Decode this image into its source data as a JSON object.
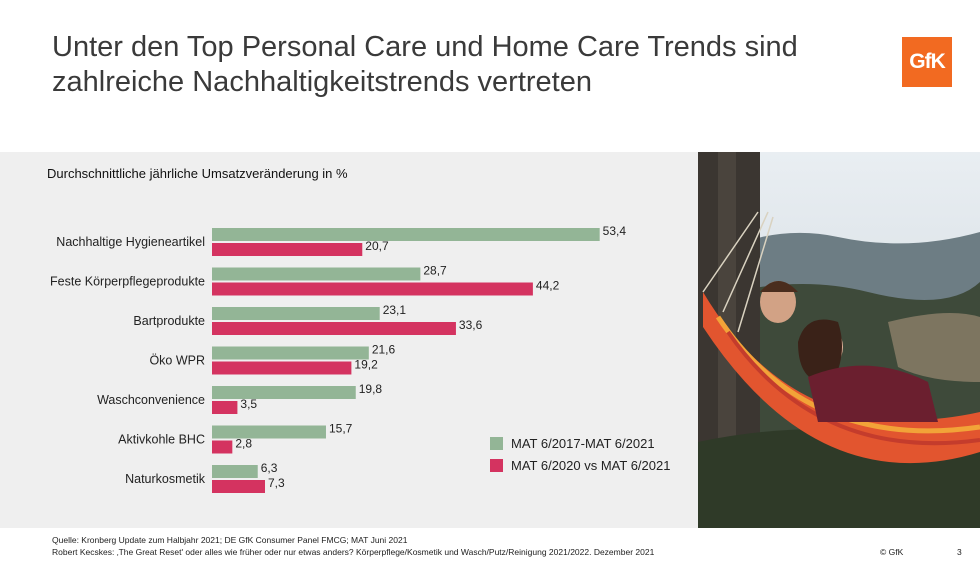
{
  "title": "Unter den Top Personal Care und Home Care Trends sind zahlreiche Nachhaltigkeitstrends vertreten",
  "logo_text": "GfK",
  "colors": {
    "series1": "#93b596",
    "series2": "#d43360",
    "logo": "#f26a21"
  },
  "chart_data": {
    "type": "bar",
    "orientation": "horizontal",
    "title": "Durchschnittliche jährliche Umsatzveränderung in %",
    "categories": [
      "Nachhaltige Hygieneartikel",
      "Feste Körperpflegeprodukte",
      "Bartprodukte",
      "Öko WPR",
      "Waschconvenience",
      "Aktivkohle BHC",
      "Naturkosmetik"
    ],
    "series": [
      {
        "name": "MAT 6/2017-MAT 6/2021",
        "values": [
          53.4,
          28.7,
          23.1,
          21.6,
          19.8,
          15.7,
          6.3
        ],
        "labels": [
          "53,4",
          "28,7",
          "23,1",
          "21,6",
          "19,8",
          "15,7",
          "6,3"
        ]
      },
      {
        "name": "MAT 6/2020 vs MAT 6/2021",
        "values": [
          20.7,
          44.2,
          33.6,
          19.2,
          3.5,
          2.8,
          7.3
        ],
        "labels": [
          "20,7",
          "44,2",
          "33,6",
          "19,2",
          "3,5",
          "2,8",
          "7,3"
        ]
      }
    ],
    "xlim": [
      0,
      60
    ],
    "grid": false,
    "legend_position": "bottom-right"
  },
  "footer": {
    "source": "Quelle: Kronberg Update zum Halbjahr 2021; DE GfK Consumer Panel FMCG; MAT Juni 2021",
    "reference": "Robert Kecskes: ‚The Great Reset' oder alles wie früher oder nur etwas anders? Körperpflege/Kosmetik und Wasch/Putz/Reinigung 2021/2022. Dezember 2021",
    "copyright": "© GfK",
    "page": "3"
  }
}
